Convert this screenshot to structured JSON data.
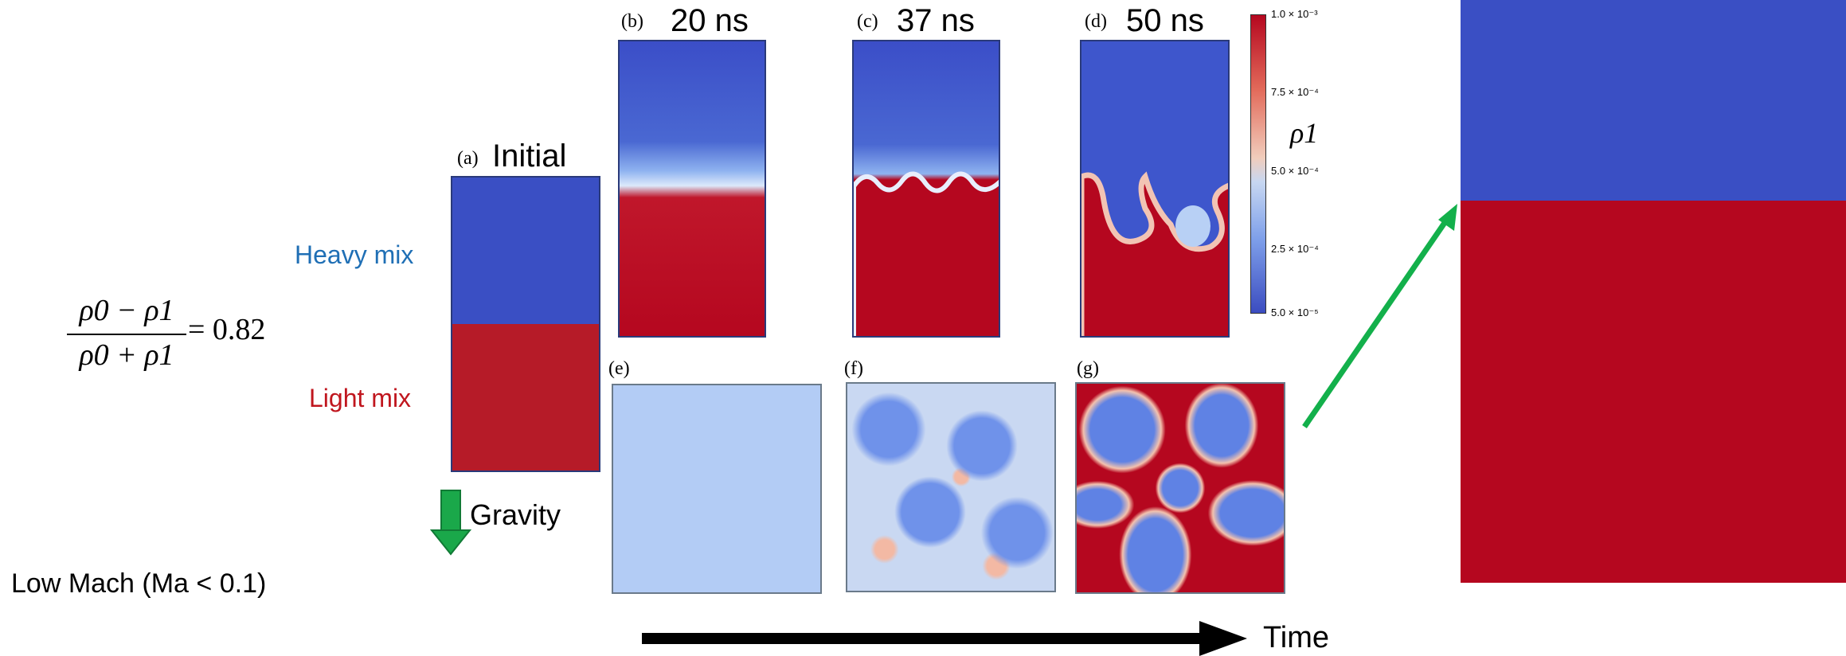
{
  "formula": {
    "num": "ρ0 − ρ1",
    "den": "ρ0 + ρ1",
    "eq": "= 0.82"
  },
  "labels": {
    "heavy": "Heavy mix",
    "light": "Light mix",
    "gravity": "Gravity",
    "mach": "Low Mach (Ma < 0.1)",
    "time": "Time"
  },
  "panels": {
    "a": {
      "tag": "(a)",
      "title": "Initial"
    },
    "b": {
      "tag": "(b)",
      "title": "20 ns"
    },
    "c": {
      "tag": "(c)",
      "title": "37 ns"
    },
    "d": {
      "tag": "(d)",
      "title": "50 ns"
    },
    "e": {
      "tag": "(e)"
    },
    "f": {
      "tag": "(f)"
    },
    "g": {
      "tag": "(g)"
    }
  },
  "colorbar": {
    "label": "ρ1",
    "ticks": [
      "1.0 × 10⁻³",
      "7.5 × 10⁻⁴",
      "5.0 × 10⁻⁴",
      "2.5 × 10⁻⁴",
      "5.0 × 10⁻⁵"
    ]
  },
  "colors": {
    "heavy_text": "#1f6fb5",
    "light_text": "#c0161e",
    "heavy_fluid": "#3a4fc4",
    "light_fluid": "#b5071f",
    "gravity_arrow": "#1aa84a",
    "time_arrow": "#000000",
    "zoom_arrow": "#13b04b"
  }
}
